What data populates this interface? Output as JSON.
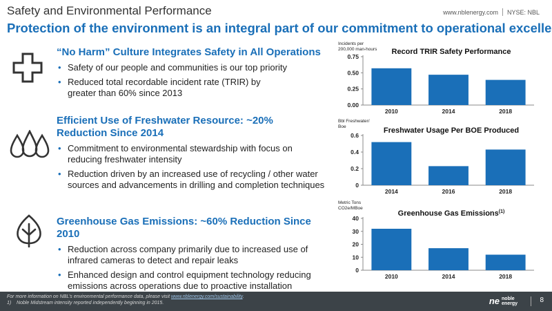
{
  "header": {
    "title": "Safety and Environmental Performance",
    "website": "www.nblenergy.com",
    "ticker": "NYSE: NBL",
    "subtitle": "Protection of the environment is an integral part of our commitment to operational excellence"
  },
  "sections": [
    {
      "icon": "cross-icon",
      "heading": "“No Harm” Culture Integrates Safety in All Operations",
      "bullets": [
        "Safety of our people and communities is our top priority",
        "Reduced total recordable incident rate (TRIR) by greater than 60% since 2013"
      ]
    },
    {
      "icon": "water-drops-icon",
      "heading": "Efficient Use of Freshwater Resource:  ~20% Reduction Since 2014",
      "bullets": [
        "Commitment to environmental stewardship with focus on reducing freshwater intensity",
        "Reduction driven by an increased use of recycling / other water sources and advancements in drilling and completion techniques"
      ]
    },
    {
      "icon": "leaf-icon",
      "heading": "Greenhouse Gas Emissions: ~60% Reduction Since 2010",
      "bullets": [
        "Reduction across company primarily due to increased use of infrared cameras to detect and repair leaks",
        "Enhanced design and control equipment technology reducing emissions across operations due to proactive installation"
      ]
    }
  ],
  "chart_data": [
    {
      "type": "bar",
      "title": "Record TRIR Safety Performance",
      "ylabel": "Incidents per 200,000 man-hours",
      "categories": [
        "2010",
        "2014",
        "2018"
      ],
      "values": [
        0.57,
        0.47,
        0.39
      ],
      "ylim": [
        0,
        0.75
      ],
      "yticks": [
        "0.00",
        "0.25",
        "0.50",
        "0.75"
      ],
      "color": "#1a6fb8"
    },
    {
      "type": "bar",
      "title": "Freshwater Usage Per BOE Produced",
      "ylabel": "Bbl Freshwater/ Boe",
      "categories": [
        "2014",
        "2016",
        "2018"
      ],
      "values": [
        0.52,
        0.23,
        0.43
      ],
      "ylim": [
        0,
        0.6
      ],
      "yticks": [
        "0",
        "0.2",
        "0.4",
        "0.6"
      ],
      "color": "#1a6fb8"
    },
    {
      "type": "bar",
      "title": "Greenhouse Gas Emissions",
      "title_sup": "(1)",
      "ylabel": "Metric Tons CO2e/MBoe",
      "categories": [
        "2010",
        "2014",
        "2018"
      ],
      "values": [
        32,
        17,
        12
      ],
      "ylim": [
        0,
        40
      ],
      "yticks": [
        "0",
        "10",
        "20",
        "30",
        "40"
      ],
      "color": "#1a6fb8"
    }
  ],
  "footer": {
    "note_prefix": "For more information on NBL’s environmental performance data, please visit ",
    "note_link": "www.nblenergy.com/sustainability",
    "note_suffix": ".",
    "footnote_num": "1)",
    "footnote": "Noble Midstream intensity reported independently beginning in 2015.",
    "logo_mark": "ne",
    "logo_word_1": "noble",
    "logo_word_2": "energy",
    "page_number": "8"
  }
}
